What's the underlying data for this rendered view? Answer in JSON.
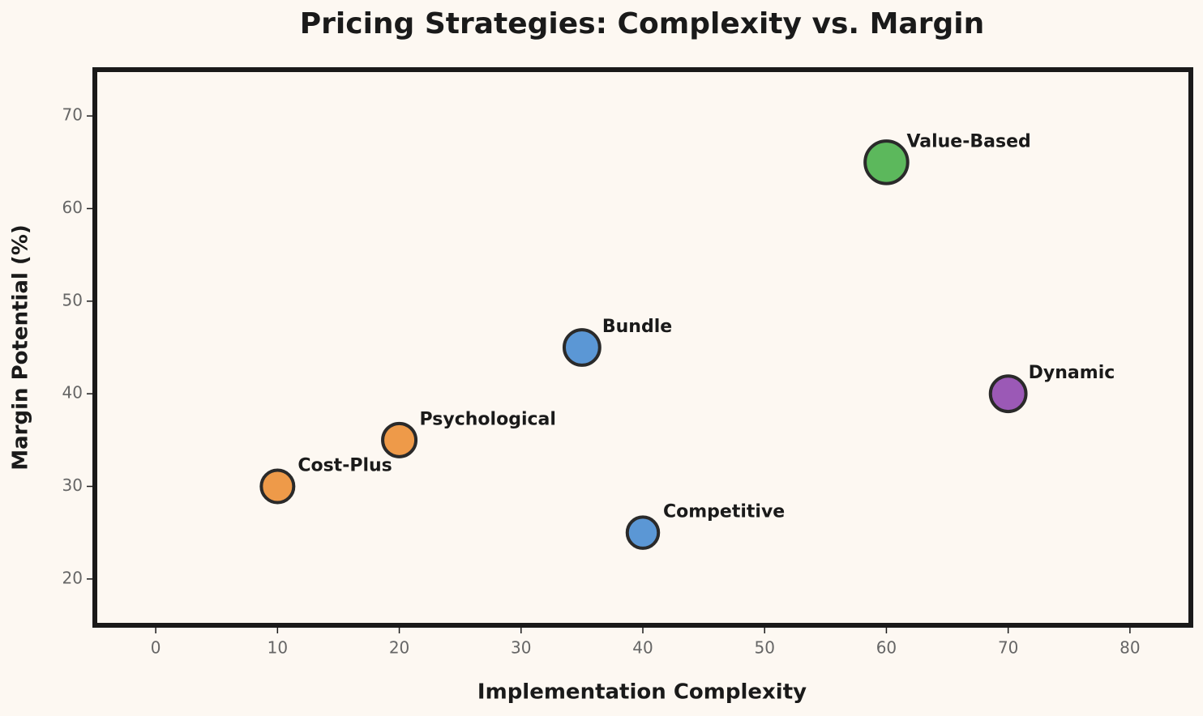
{
  "chart_data": {
    "type": "scatter",
    "title": "Pricing Strategies: Complexity vs. Margin",
    "xlabel": "Implementation Complexity",
    "ylabel": "Margin Potential (%)",
    "labels": [
      "Cost-Plus",
      "Psychological",
      "Bundle",
      "Competitive",
      "Value-Based",
      "Dynamic"
    ],
    "x": [
      10,
      20,
      35,
      40,
      60,
      70
    ],
    "values": [
      30,
      35,
      45,
      25,
      65,
      40
    ],
    "sizes": [
      400,
      420,
      480,
      370,
      690,
      480
    ],
    "colors": [
      "#ee9a49",
      "#ee9a49",
      "#5b97d5",
      "#5b97d5",
      "#5cb85c",
      "#9b59b6"
    ],
    "xlim": [
      -5,
      85
    ],
    "xticks": [
      0,
      10,
      20,
      30,
      40,
      50,
      60,
      70,
      80
    ],
    "ylim": [
      15,
      75
    ],
    "yticks": [
      20,
      30,
      40,
      50,
      60,
      70
    ],
    "grid": false
  }
}
